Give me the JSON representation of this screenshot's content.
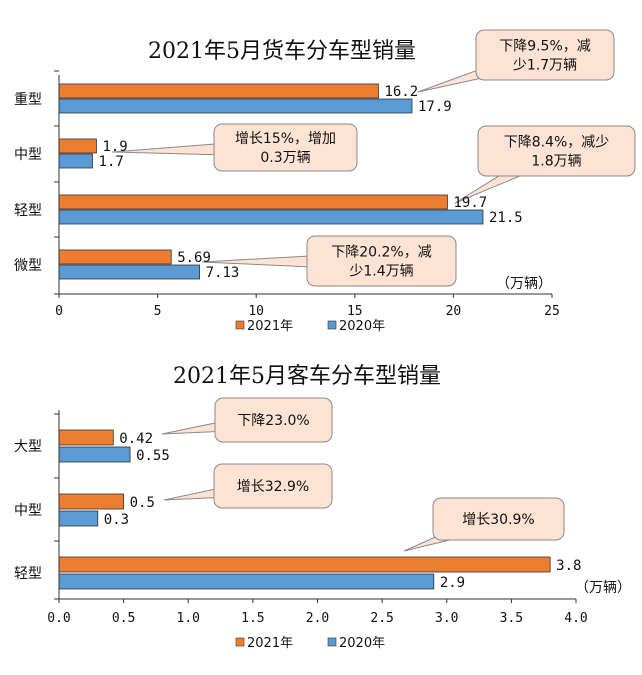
{
  "colors": {
    "series_2021": "#ed7d31",
    "series_2020": "#5b9bd5",
    "callout_fill": "#fde3d3",
    "callout_stroke": "#8a8a8a"
  },
  "chart_data": [
    {
      "type": "bar",
      "orientation": "horizontal",
      "title": "2021年5月货车分车型销量",
      "categories": [
        "重型",
        "中型",
        "轻型",
        "微型"
      ],
      "series": [
        {
          "name": "2021年",
          "values": [
            16.2,
            1.9,
            19.7,
            5.69
          ],
          "labels": [
            "16.2",
            "1.9",
            "19.7",
            "5.69"
          ]
        },
        {
          "name": "2020年",
          "values": [
            17.9,
            1.7,
            21.5,
            7.13
          ],
          "labels": [
            "17.9",
            "1.7",
            "21.5",
            "7.13"
          ]
        }
      ],
      "xlim": [
        0,
        25
      ],
      "xticks": [
        "0",
        "5",
        "10",
        "15",
        "20",
        "25"
      ],
      "xtick_values": [
        0,
        5,
        10,
        15,
        20,
        25
      ],
      "unit": "（万辆）",
      "legend_position": "bottom",
      "grid": false,
      "annotations": [
        {
          "category": "重型",
          "lines": [
            "下降9.5%，减",
            "少1.7万辆"
          ]
        },
        {
          "category": "中型",
          "lines": [
            "增长15%，增加",
            "0.3万辆"
          ]
        },
        {
          "category": "轻型",
          "lines": [
            "下降8.4%，减少",
            "1.8万辆"
          ]
        },
        {
          "category": "微型",
          "lines": [
            "下降20.2%，减",
            "少1.4万辆"
          ]
        }
      ]
    },
    {
      "type": "bar",
      "orientation": "horizontal",
      "title": "2021年5月客车分车型销量",
      "categories": [
        "大型",
        "中型",
        "轻型"
      ],
      "series": [
        {
          "name": "2021年",
          "values": [
            0.42,
            0.5,
            3.8
          ],
          "labels": [
            "0.42",
            "0.5",
            "3.8"
          ]
        },
        {
          "name": "2020年",
          "values": [
            0.55,
            0.3,
            2.9
          ],
          "labels": [
            "0.55",
            "0.3",
            "2.9"
          ]
        }
      ],
      "xlim": [
        0,
        4
      ],
      "xticks": [
        "0.0",
        "0.5",
        "1.0",
        "1.5",
        "2.0",
        "2.5",
        "3.0",
        "3.5",
        "4.0"
      ],
      "xtick_values": [
        0,
        0.5,
        1,
        1.5,
        2,
        2.5,
        3,
        3.5,
        4
      ],
      "unit": "（万辆）",
      "legend_position": "bottom",
      "grid": false,
      "annotations": [
        {
          "category": "大型",
          "lines": [
            "下降23.0%"
          ]
        },
        {
          "category": "中型",
          "lines": [
            "增长32.9%"
          ]
        },
        {
          "category": "轻型",
          "lines": [
            "增长30.9%"
          ]
        }
      ]
    }
  ]
}
